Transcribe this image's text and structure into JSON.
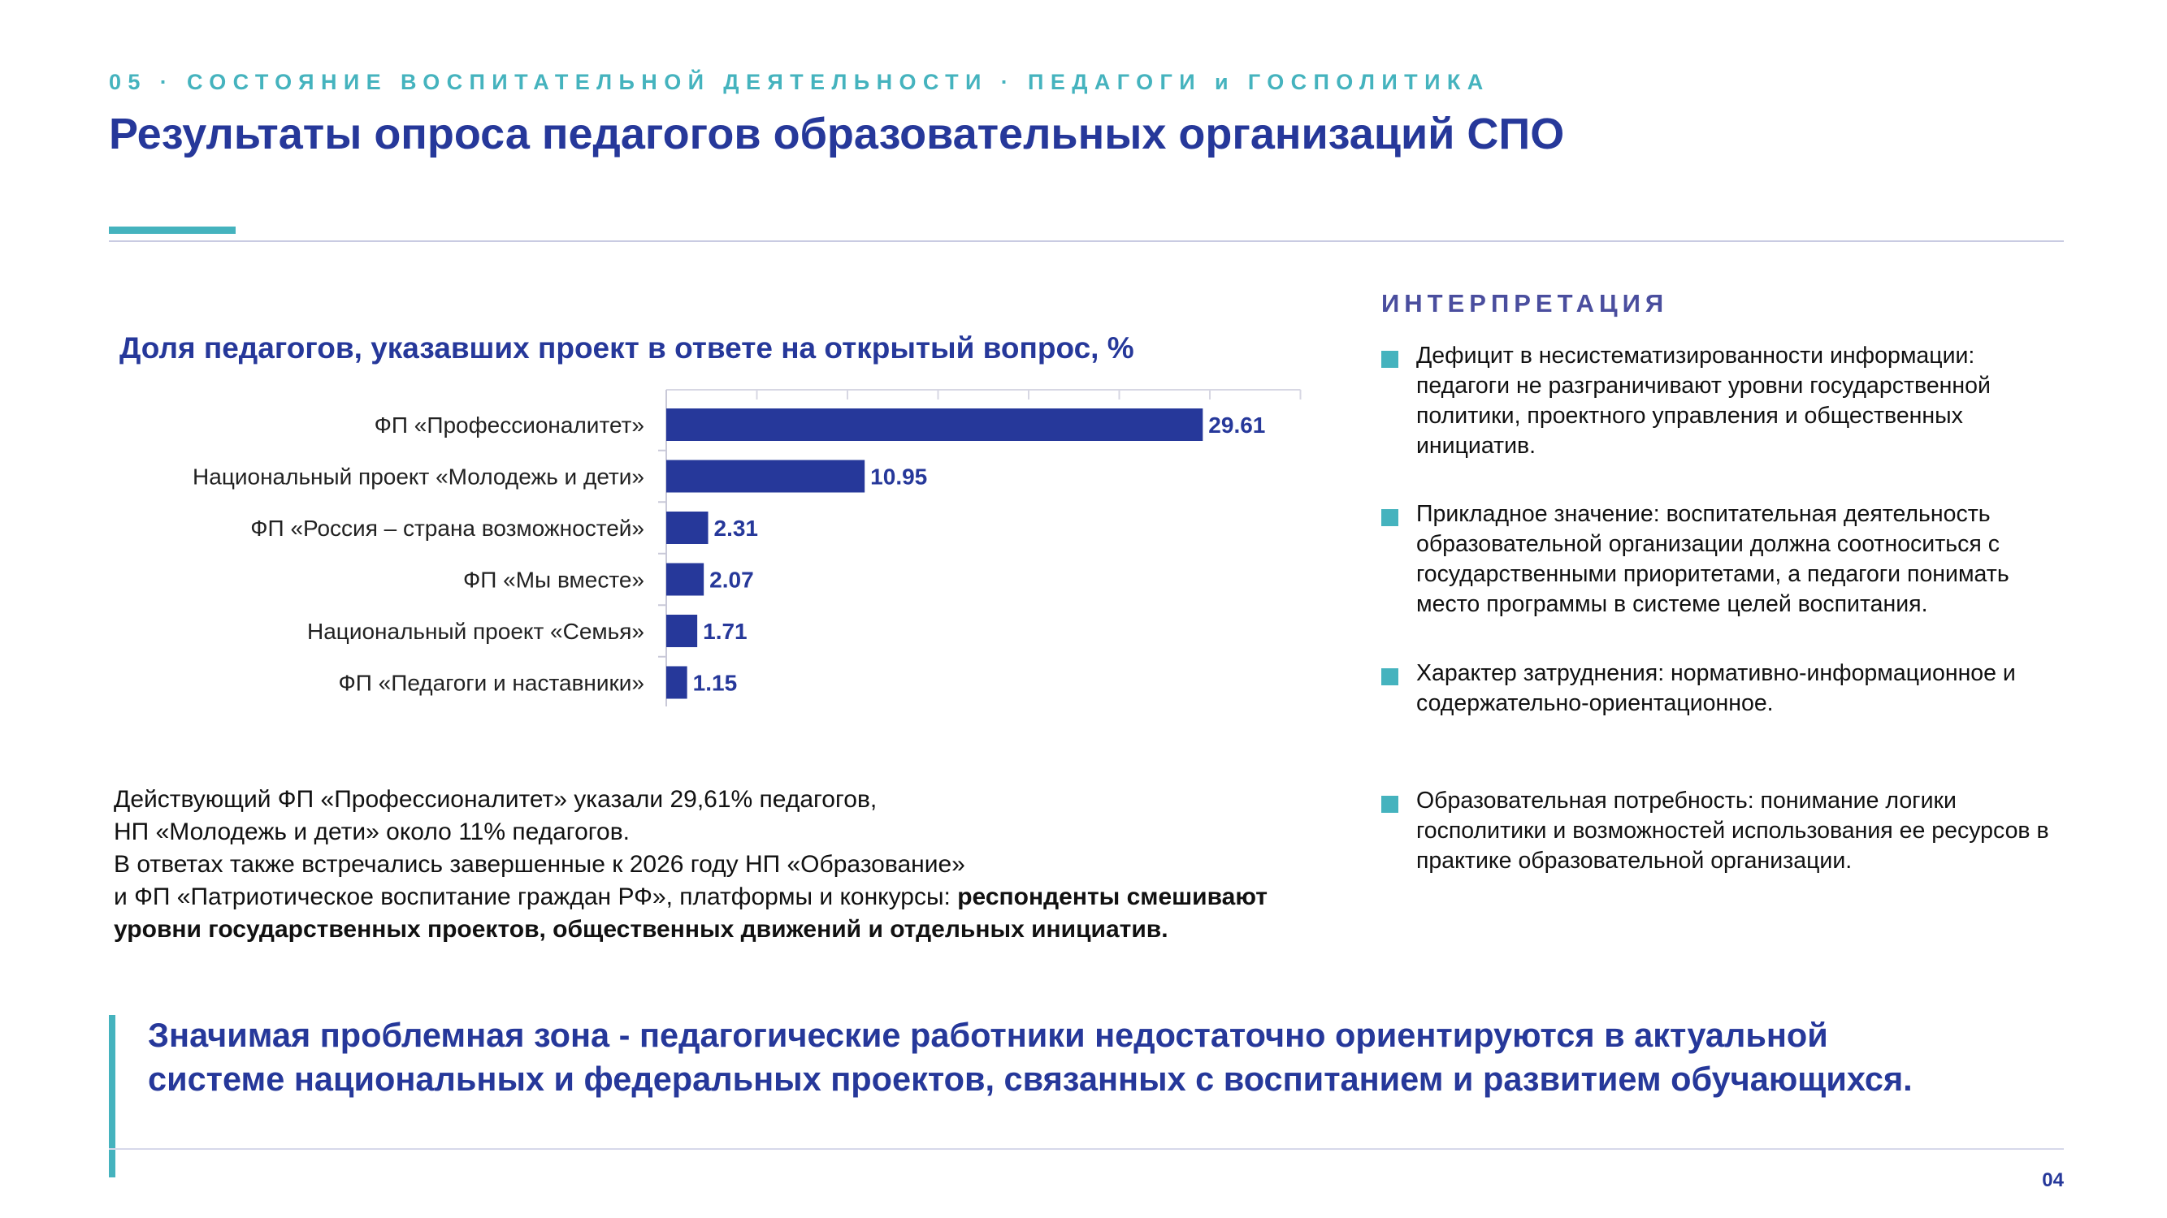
{
  "header": {
    "kicker": "05 · СОСТОЯНИЕ ВОСПИТАТЕЛЬНОЙ ДЕЯТЕЛЬНОСТИ · ПЕДАГОГИ и ГОСПОЛИТИКА",
    "title": "Результаты опроса педагогов образовательных организаций СПО"
  },
  "colors": {
    "accent": "#45b3be",
    "brand": "#26389a",
    "bar": "#26389a"
  },
  "chart_data": {
    "type": "bar",
    "orientation": "horizontal",
    "title": "Доля педагогов, указавших проект в ответе на открытый вопрос, %",
    "categories": [
      "ФП «Профессионалитет»",
      "Национальный проект «Молодежь и дети»",
      "ФП «Россия – страна возможностей»",
      "ФП «Мы вместе»",
      "Национальный проект «Семья»",
      "ФП «Педагоги и наставники»"
    ],
    "values": [
      29.61,
      10.95,
      2.31,
      2.07,
      1.71,
      1.15
    ],
    "value_labels": [
      "29.61",
      "10.95",
      "2.31",
      "2.07",
      "1.71",
      "1.15"
    ],
    "xlim": [
      0,
      35
    ],
    "grid": false,
    "legend": "none"
  },
  "summary": {
    "line1": "Действующий ФП «Профессионалитет» указали 29,61% педагогов,",
    "line2": "НП «Молодежь и дети»  около 11% педагогов.",
    "line3": "В ответах также встречались завершенные к 2026 году НП «Образование»",
    "line4": "и ФП «Патриотическое воспитание граждан РФ», платформы и конкурсы: ",
    "line4_bold": "респонденты смешивают уровни государственных проектов, общественных движений и отдельных инициатив."
  },
  "interpretation": {
    "heading": "ИНТЕРПРЕТАЦИЯ",
    "items": [
      "Дефицит в несистематизированности информации: педагоги не разграничивают уровни государственной политики, проектного управления и общественных инициатив.",
      "Прикладное значение: воспитательная деятельность образовательной организации должна соотноситься с государственными приоритетами, а педагоги понимать место программы в системе целей воспитания.",
      "Характер затруднения: нормативно-информационное и содержательно-ориентационное.",
      "Образовательная потребность: понимание логики госполитики и возможностей использования ее ресурсов в практике образовательной организации."
    ]
  },
  "callout": "Значимая проблемная зона - педагогические работники недостаточно ориентируются в актуальной системе национальных и федеральных проектов, связанных с воспитанием и развитием обучающихся.",
  "page_number": "04"
}
